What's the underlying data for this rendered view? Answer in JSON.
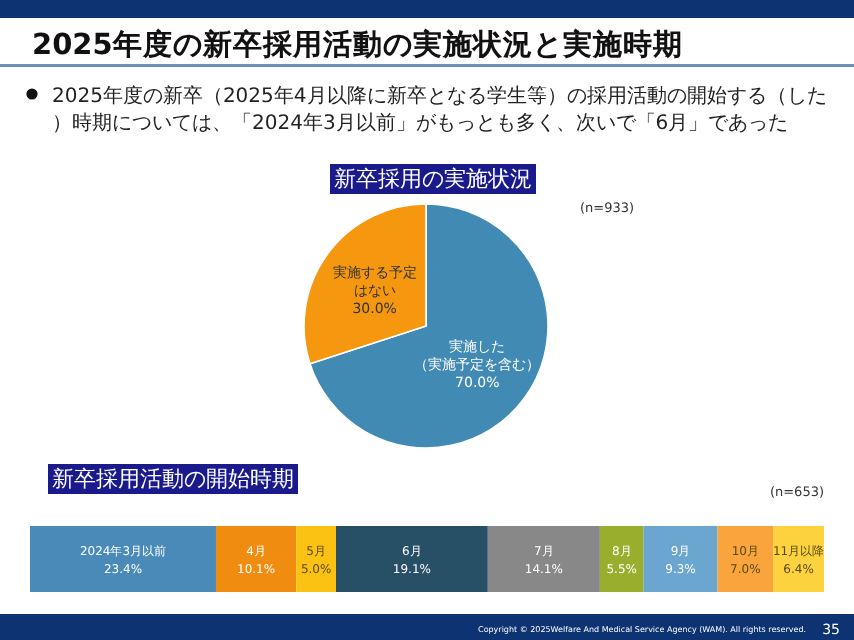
{
  "chart_data": [
    {
      "type": "other",
      "title": "2025年度の新卒採用活動の実施状況と実施時期",
      "subtitle": "2025年度の新卒（2025年4月以降に新卒となる学生等）の採用活動の開始する（した）時期については、「2024年3月以前」がもっとも多く、次いで「6月」であった",
      "annotations": [
        "Copyright © 2025Welfare And Medical Service Agency (WAM). All rights reserved.",
        "35"
      ]
    },
    {
      "type": "pie",
      "title": "新卒採用の実施状況",
      "categories": [
        "実施した（実施予定を含む）",
        "実施する予定はない"
      ],
      "values": [
        70.0,
        30.0
      ],
      "colors": [
        "#418ab3",
        "#f5980f"
      ],
      "value_labels": [
        "70.0%",
        "30.0%"
      ],
      "annotations": [
        "(n=933)"
      ]
    },
    {
      "type": "bar",
      "title": "新卒採用活動の開始時期",
      "orientation": "horizontal",
      "stacked": true,
      "categories": [
        null
      ],
      "annotations": [
        "(n=653)"
      ],
      "series": [
        {
          "name": "2024年3月以前",
          "color": "#4a8ab8",
          "values": [
            23.4
          ],
          "value_labels": [
            "23.4%"
          ]
        },
        {
          "name": "4月",
          "color": "#f08c10",
          "values": [
            10.1
          ],
          "value_labels": [
            "10.1%"
          ]
        },
        {
          "name": "5月",
          "color": "#fcc213",
          "values": [
            5.0
          ],
          "value_labels": [
            "5.0%"
          ]
        },
        {
          "name": "6月",
          "color": "#274f66",
          "values": [
            19.1
          ],
          "value_labels": [
            "19.1%"
          ]
        },
        {
          "name": "7月",
          "color": "#888888",
          "values": [
            14.1
          ],
          "value_labels": [
            "14.1%"
          ]
        },
        {
          "name": "8月",
          "color": "#9aae2e",
          "values": [
            5.5
          ],
          "value_labels": [
            "5.5%"
          ]
        },
        {
          "name": "9月",
          "color": "#6aa6cf",
          "values": [
            9.3
          ],
          "value_labels": [
            "9.3%"
          ]
        },
        {
          "name": "10月",
          "color": "#f9a43c",
          "values": [
            7.0
          ],
          "value_labels": [
            "7.0%"
          ]
        },
        {
          "name": "11月以降",
          "color": "#fdd23f",
          "values": [
            6.4
          ],
          "value_labels": [
            "6.4%"
          ]
        }
      ]
    }
  ]
}
